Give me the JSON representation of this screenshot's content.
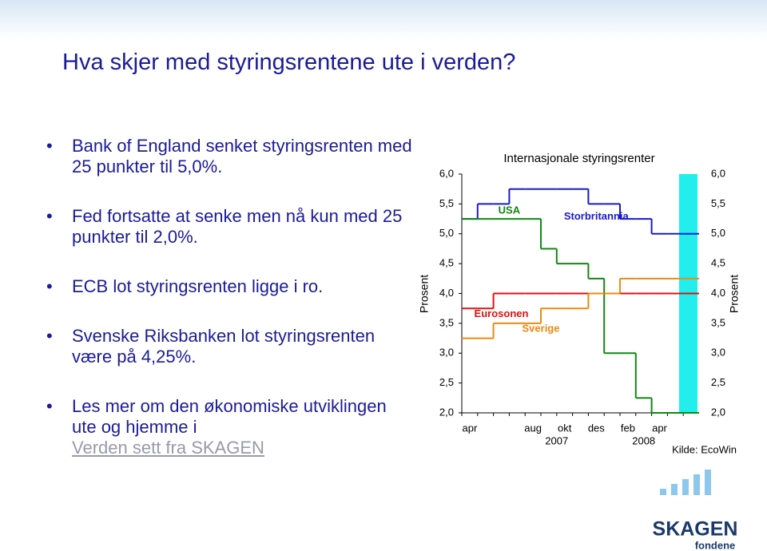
{
  "slide": {
    "title": "Hva skjer med styringsrentene ute i verden?",
    "bullets": [
      "Bank of England senket styringsrenten med 25 punkter til 5,0%.",
      "Fed fortsatte at senke men nå kun med 25 punkter til 2,0%.",
      "ECB lot styringsrenten ligge i ro.",
      "Svenske Riksbanken lot styringsrenten være på 4,25%.",
      "Les mer om den økonomiske utviklingen ute og hjemme i"
    ],
    "link": "Verden sett fra SKAGEN",
    "logo": "SKAGEN",
    "logo_sub": "fondene"
  },
  "chart_data": {
    "type": "step",
    "title": "Internasjonale styringsrenter",
    "ylabel": "Prosent",
    "y2label": "Prosent",
    "source": "Kilde: EcoWin",
    "categories": [
      "apr",
      null,
      null,
      null,
      "aug",
      null,
      "okt",
      null,
      "des",
      null,
      "feb",
      null,
      "apr",
      null,
      null
    ],
    "year_labels": [
      "2007",
      "2008"
    ],
    "series": [
      {
        "name": "Storbritannia",
        "color": "#1a1acc",
        "values": [
          5.25,
          5.5,
          5.5,
          5.75,
          5.75,
          5.75,
          5.75,
          5.75,
          5.5,
          5.5,
          5.25,
          5.25,
          5.0,
          5.0,
          5.0
        ]
      },
      {
        "name": "USA",
        "color": "#118811",
        "values": [
          5.25,
          5.25,
          5.25,
          5.25,
          5.25,
          4.75,
          4.5,
          4.5,
          4.25,
          3.0,
          3.0,
          2.25,
          2.0,
          2.0,
          2.0
        ]
      },
      {
        "name": "Eurosonen",
        "color": "#dd1111",
        "values": [
          3.75,
          3.75,
          4.0,
          4.0,
          4.0,
          4.0,
          4.0,
          4.0,
          4.0,
          4.0,
          4.0,
          4.0,
          4.0,
          4.0,
          4.0
        ]
      },
      {
        "name": "Sverige",
        "color": "#ee8811",
        "values": [
          3.25,
          3.25,
          3.5,
          3.5,
          3.5,
          3.75,
          3.75,
          3.75,
          4.0,
          4.0,
          4.25,
          4.25,
          4.25,
          4.25,
          4.25
        ]
      }
    ],
    "ylim": [
      2.0,
      6.0
    ],
    "yticks": [
      {
        "value": 2.0,
        "label": "2,0"
      },
      {
        "value": 2.5,
        "label": "2,5"
      },
      {
        "value": 3.0,
        "label": "3,0"
      },
      {
        "value": 3.5,
        "label": "3,5"
      },
      {
        "value": 4.0,
        "label": "4,0"
      },
      {
        "value": 4.5,
        "label": "4,5"
      },
      {
        "value": 5.0,
        "label": "5,0"
      },
      {
        "value": 5.5,
        "label": "5,5"
      },
      {
        "value": 6.0,
        "label": "6,0"
      }
    ]
  }
}
